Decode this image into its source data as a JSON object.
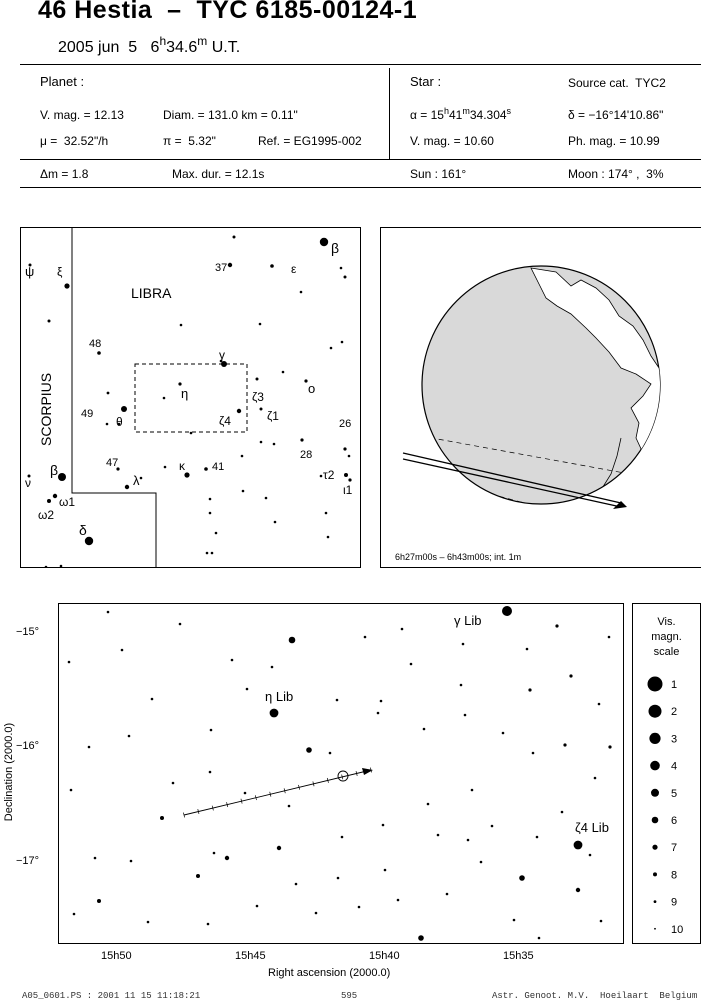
{
  "header": {
    "title": "46 Hestia  –  TYC 6185-00124-1",
    "date": "2005 jun  5",
    "time_h": "6",
    "time_h_sup": "h",
    "time_m": "34.6",
    "time_m_sup": "m",
    "time_ut": " U.T."
  },
  "planet": {
    "heading": "Planet :",
    "vmag": "V. mag. = 12.13",
    "diam": "Diam. = 131.0 km = 0.11\"",
    "mu": "μ =  32.52\"/h",
    "pi": "π =  5.32\"",
    "ref": "Ref. = EG1995-002"
  },
  "star": {
    "heading": "Star :",
    "source": "Source cat.  TYC2",
    "alpha_prefix": "α = 15",
    "alpha_h": "h",
    "alpha_mid": "41",
    "alpha_m": "m",
    "alpha_sec": "34.304",
    "alpha_s": "s",
    "delta": "δ = −16°14'10.86\"",
    "vmag": "V. mag. = 10.60",
    "phmag": "Ph. mag. = 10.99"
  },
  "event": {
    "dm": "Δm = 1.8",
    "maxdur": "Max. dur. = 12.1s",
    "sun": "Sun : 161°",
    "moon": "Moon : 174° ,  3%"
  },
  "finder_chart": {
    "constellation_main": "LIBRA",
    "constellation_side": "SCORPIUS",
    "labels": [
      "37",
      "β",
      "ε",
      "ψ",
      "ξ",
      "48",
      "γ",
      "η",
      "θ",
      "49",
      "ζ3",
      "ζ1",
      "ζ4",
      "ο",
      "26",
      "28",
      "47",
      "κ",
      "41",
      "λ",
      "β",
      "ν",
      "ω1",
      "ω2",
      "δ",
      "τ2",
      "ι1"
    ]
  },
  "globe": {
    "caption": "6h27m00s –  6h43m00s;  int.  1m"
  },
  "detail_chart": {
    "ylabel": "Declination (2000.0)",
    "xlabel": "Right ascension (2000.0)",
    "yticks": [
      "−15°",
      "−16°",
      "−17°"
    ],
    "xticks": [
      "15h50",
      "15h45",
      "15h40",
      "15h35"
    ],
    "star_labels": [
      "γ Lib",
      "η Lib",
      "ζ4 Lib"
    ]
  },
  "legend": {
    "title_lines": [
      "Vis.",
      "magn.",
      "scale"
    ],
    "items": [
      "1",
      "2",
      "3",
      "4",
      "5",
      "6",
      "7",
      "8",
      "9",
      "10"
    ]
  },
  "footer": {
    "left": "A05_0601.PS : 2001 11 15 11:18:21",
    "center": "595",
    "right": "Astr. Genoot. M.V.  Hoeilaart  Belgium"
  }
}
